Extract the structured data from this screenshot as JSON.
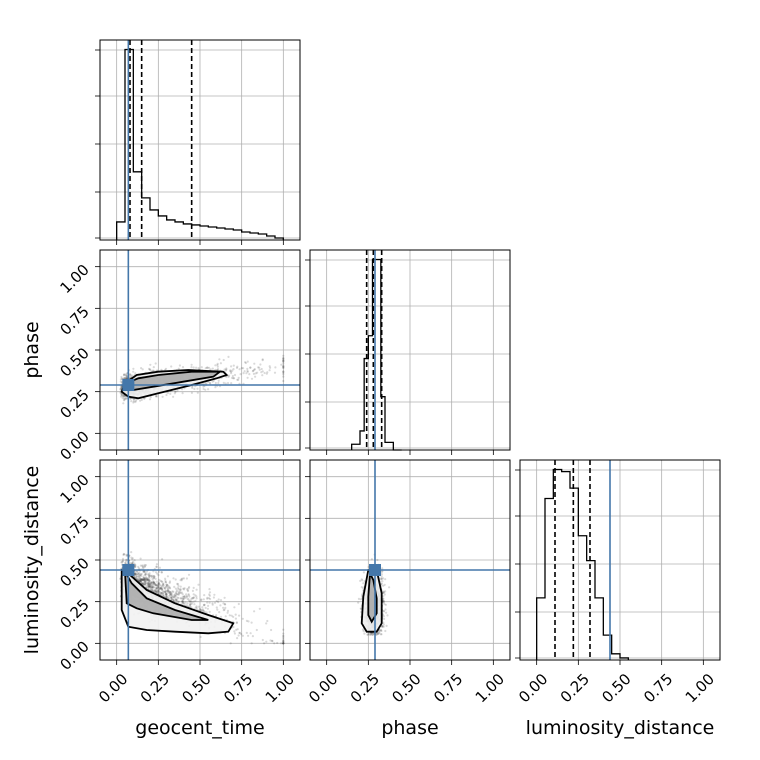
{
  "chart_data": {
    "type": "corner",
    "parameters": [
      "geocent_time",
      "phase",
      "luminosity_distance"
    ],
    "axis_range": [
      -0.1,
      1.1
    ],
    "ticks": [
      0.0,
      0.25,
      0.5,
      0.75,
      1.0
    ],
    "tick_labels": [
      "0.00",
      "0.25",
      "0.50",
      "0.75",
      "1.00"
    ],
    "grid": true,
    "colors": {
      "truth": "#4477aa",
      "hist": "#000000",
      "points": "#333333"
    },
    "truths": {
      "geocent_time": 0.07,
      "phase": 0.29,
      "luminosity_distance": 0.44
    },
    "quantiles": {
      "geocent_time": [
        0.08,
        0.15,
        0.45
      ],
      "phase": [
        0.24,
        0.28,
        0.33
      ],
      "luminosity_distance": [
        0.11,
        0.22,
        0.32
      ]
    },
    "histograms": {
      "geocent_time": {
        "bin_edges": [
          0.0,
          0.05,
          0.1,
          0.15,
          0.2,
          0.25,
          0.3,
          0.35,
          0.4,
          0.45,
          0.5,
          0.55,
          0.6,
          0.65,
          0.7,
          0.75,
          0.8,
          0.85,
          0.9,
          0.95,
          1.0
        ],
        "counts": [
          0.09,
          0.95,
          0.34,
          0.21,
          0.15,
          0.12,
          0.1,
          0.09,
          0.08,
          0.075,
          0.07,
          0.065,
          0.06,
          0.055,
          0.05,
          0.04,
          0.035,
          0.03,
          0.02,
          0.01
        ]
      },
      "phase": {
        "bin_edges": [
          0.15,
          0.2,
          0.225,
          0.25,
          0.275,
          0.3,
          0.325,
          0.35,
          0.4,
          0.45
        ],
        "counts": [
          0.03,
          0.1,
          0.48,
          0.6,
          1.0,
          1.0,
          0.28,
          0.04,
          0.0
        ]
      },
      "luminosity_distance": {
        "bin_edges": [
          0.0,
          0.05,
          0.1,
          0.15,
          0.2,
          0.25,
          0.3,
          0.35,
          0.4,
          0.45,
          0.5,
          0.55
        ],
        "counts": [
          0.3,
          0.78,
          0.92,
          0.91,
          0.83,
          0.6,
          0.48,
          0.3,
          0.12,
          0.03,
          0.01
        ]
      }
    },
    "contours": {
      "phase__geocent_time": [
        [
          [
            0.05,
            0.27
          ],
          [
            0.08,
            0.31
          ],
          [
            0.13,
            0.33
          ],
          [
            0.25,
            0.35
          ],
          [
            0.45,
            0.37
          ],
          [
            0.62,
            0.37
          ],
          [
            0.58,
            0.34
          ],
          [
            0.4,
            0.31
          ],
          [
            0.22,
            0.28
          ],
          [
            0.1,
            0.26
          ]
        ],
        [
          [
            0.03,
            0.25
          ],
          [
            0.05,
            0.3
          ],
          [
            0.12,
            0.35
          ],
          [
            0.25,
            0.37
          ],
          [
            0.43,
            0.38
          ],
          [
            0.64,
            0.37
          ],
          [
            0.66,
            0.35
          ],
          [
            0.6,
            0.33
          ],
          [
            0.45,
            0.29
          ],
          [
            0.25,
            0.24
          ],
          [
            0.13,
            0.21
          ],
          [
            0.07,
            0.22
          ]
        ]
      ],
      "luminosity_distance__geocent_time": [
        [
          [
            0.05,
            0.43
          ],
          [
            0.09,
            0.36
          ],
          [
            0.18,
            0.27
          ],
          [
            0.35,
            0.2
          ],
          [
            0.55,
            0.14
          ],
          [
            0.45,
            0.14
          ],
          [
            0.22,
            0.18
          ],
          [
            0.12,
            0.21
          ],
          [
            0.06,
            0.24
          ]
        ],
        [
          [
            0.03,
            0.44
          ],
          [
            0.08,
            0.41
          ],
          [
            0.18,
            0.32
          ],
          [
            0.35,
            0.24
          ],
          [
            0.55,
            0.17
          ],
          [
            0.7,
            0.12
          ],
          [
            0.67,
            0.07
          ],
          [
            0.55,
            0.06
          ],
          [
            0.35,
            0.07
          ],
          [
            0.18,
            0.08
          ],
          [
            0.07,
            0.1
          ],
          [
            0.03,
            0.2
          ]
        ]
      ],
      "luminosity_distance__phase": [
        [
          [
            0.26,
            0.42
          ],
          [
            0.28,
            0.38
          ],
          [
            0.3,
            0.27
          ],
          [
            0.3,
            0.18
          ],
          [
            0.27,
            0.13
          ],
          [
            0.25,
            0.17
          ],
          [
            0.25,
            0.28
          ]
        ],
        [
          [
            0.25,
            0.44
          ],
          [
            0.3,
            0.44
          ],
          [
            0.33,
            0.3
          ],
          [
            0.33,
            0.12
          ],
          [
            0.3,
            0.07
          ],
          [
            0.24,
            0.07
          ],
          [
            0.21,
            0.12
          ],
          [
            0.22,
            0.28
          ]
        ]
      ]
    },
    "scatter_clouds": {
      "phase__geocent_time": {
        "count": 1700,
        "seed": 11
      },
      "luminosity_distance__geocent_time": {
        "count": 1700,
        "seed": 23
      },
      "luminosity_distance__phase": {
        "count": 1500,
        "seed": 37
      }
    }
  }
}
